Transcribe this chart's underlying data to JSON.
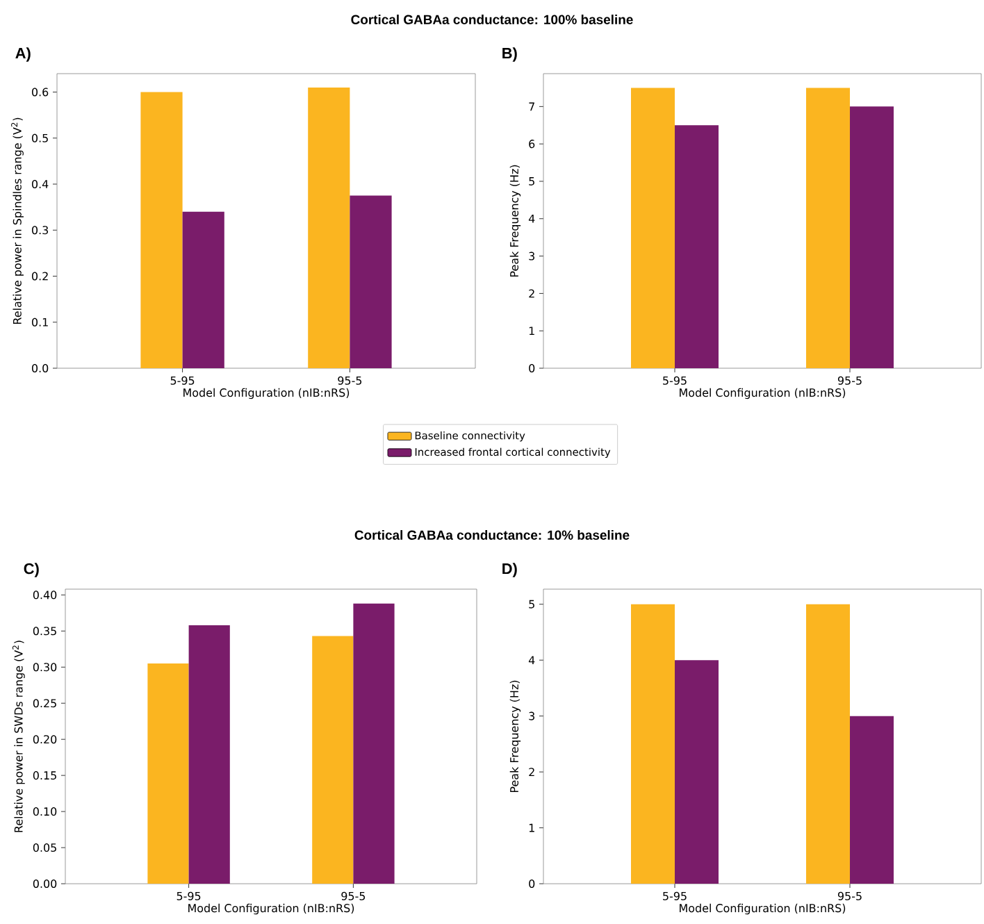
{
  "chart_data": [
    {
      "type": "bar",
      "title": "Cortical GABAa conductance: 100% baseline",
      "annotations": [
        "A)"
      ],
      "xlabel": "Model Configuration (nIB:nRS)",
      "ylabel": "Relative power in Spindles range (V$^{2}$)",
      "categories": [
        "5-95",
        "95-5"
      ],
      "series": [
        {
          "name": "Baseline connectivity",
          "color": "#fbb520",
          "values": [
            0.6,
            0.61
          ]
        },
        {
          "name": "Increased frontal cortical connectivity",
          "color": "#7a1c6a",
          "values": [
            0.34,
            0.375
          ]
        }
      ],
      "ylim": [
        0,
        0.64
      ],
      "yticks": [
        {
          "value": 0,
          "label": "0.0"
        },
        0.1,
        0.2,
        0.3,
        0.4,
        0.5,
        0.6
      ],
      "legend": "bottom"
    },
    {
      "type": "bar",
      "annotations": [
        "B)"
      ],
      "xlabel": "Model Configuration (nIB:nRS)",
      "ylabel": "Peak Frequency (Hz)",
      "categories": [
        "5-95",
        "95-5"
      ],
      "series": [
        {
          "color": "#fbb520",
          "values": [
            7.5,
            7.5
          ]
        },
        {
          "color": "#7a1c6a",
          "values": [
            6.5,
            7.0
          ]
        }
      ],
      "ylim": [
        0,
        7.88
      ],
      "yticks": [
        0,
        1,
        2,
        3,
        4,
        5,
        6,
        7
      ]
    },
    {
      "type": "bar",
      "title": "Cortical GABAa conductance: 10% baseline",
      "annotations": [
        "C)"
      ],
      "xlabel": "Model Configuration (nIB:nRS)",
      "ylabel": "Relative power in SWDs range (V$^{2}$)",
      "categories": [
        "5-95",
        "95-5"
      ],
      "series": [
        {
          "color": "#fbb520",
          "values": [
            0.305,
            0.343
          ]
        },
        {
          "color": "#7a1c6a",
          "values": [
            0.358,
            0.388
          ]
        }
      ],
      "ylim": [
        0,
        0.408
      ],
      "yticks": [
        {
          "value": 0,
          "label": "0.00"
        },
        {
          "value": 0.05,
          "label": "0.05"
        },
        {
          "value": 0.1,
          "label": "0.10"
        },
        {
          "value": 0.15,
          "label": "0.15"
        },
        {
          "value": 0.2,
          "label": "0.20"
        },
        {
          "value": 0.25,
          "label": "0.25"
        },
        {
          "value": 0.3,
          "label": "0.30"
        },
        {
          "value": 0.35,
          "label": "0.35"
        },
        {
          "value": 0.4,
          "label": "0.40"
        }
      ]
    },
    {
      "type": "bar",
      "annotations": [
        "D)"
      ],
      "xlabel": "Model Configuration (nIB:nRS)",
      "ylabel": "Peak Frequency (Hz)",
      "categories": [
        "5-95",
        "95-5"
      ],
      "series": [
        {
          "color": "#fbb520",
          "values": [
            5,
            5
          ]
        },
        {
          "color": "#7a1c6a",
          "values": [
            4,
            3
          ]
        }
      ],
      "ylim": [
        0,
        5.27
      ],
      "yticks": [
        0,
        1,
        2,
        3,
        4,
        5
      ]
    }
  ]
}
